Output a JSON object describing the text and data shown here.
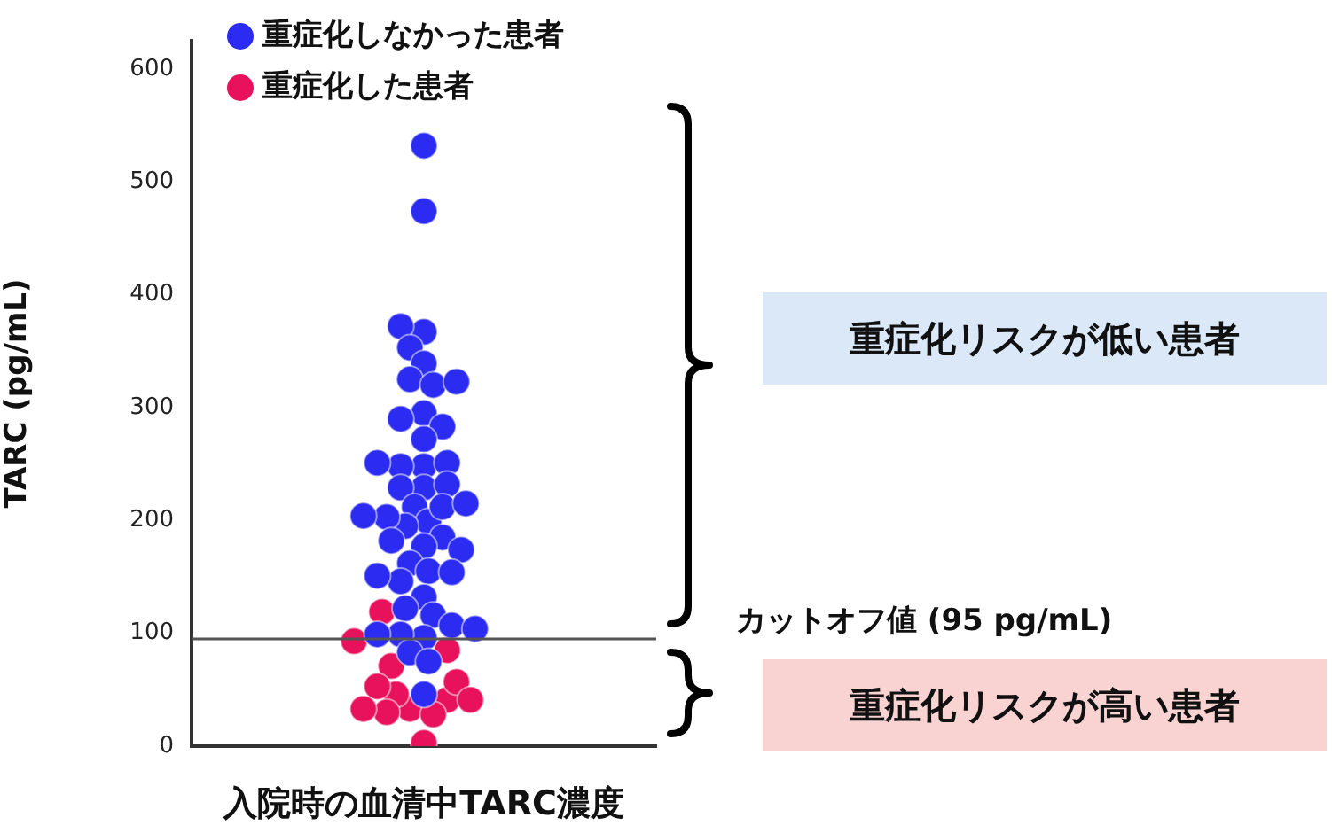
{
  "chart_data": {
    "type": "scatter",
    "categories": [
      null
    ],
    "xlabel": "入院時の血清中TARC濃度",
    "ylabel": "TARC (pg/mL)",
    "ylim": [
      0,
      625
    ],
    "yticks": [
      0,
      100,
      200,
      300,
      400,
      500,
      600
    ],
    "marker": "circle",
    "legend": "top left",
    "series": [
      {
        "name": "重症化しなかった患者",
        "color": "#2b2bf2",
        "x": [
          null,
          null,
          null,
          null,
          null,
          null,
          null,
          null,
          null,
          null,
          null,
          null,
          null,
          null,
          null,
          null,
          null,
          null,
          null,
          null,
          null,
          null,
          null,
          null,
          null,
          null,
          null,
          null,
          null,
          null,
          null,
          null,
          null,
          null,
          null,
          null,
          null,
          null,
          null,
          null,
          null,
          null,
          null,
          null,
          null,
          null,
          null
        ],
        "values": [
          532,
          474,
          367,
          372,
          353,
          339,
          325,
          320,
          323,
          295,
          290,
          283,
          272,
          248,
          248,
          251,
          251,
          229,
          229,
          232,
          212,
          199,
          195,
          212,
          203,
          215,
          204,
          185,
          177,
          182,
          174,
          162,
          155,
          154,
          146,
          151,
          132,
          122,
          116,
          107,
          96,
          99,
          99,
          104,
          83,
          75,
          46
        ]
      },
      {
        "name": "重症化した患者",
        "color": "#e8125c",
        "x": [
          null,
          null,
          null,
          null,
          null,
          null,
          null,
          null,
          null,
          null,
          null,
          null,
          null,
          null
        ],
        "values": [
          119,
          93,
          85,
          71,
          33,
          41,
          28,
          46,
          57,
          53,
          41,
          30,
          33,
          3
        ]
      }
    ],
    "ref_lines": [
      {
        "axis": "y",
        "value": 95,
        "label": "カットオフ値 (95 pg/mL)",
        "color": "#555555"
      }
    ],
    "annotations": [
      "重症化リスクが低い患者",
      "重症化リスクが高い患者"
    ]
  }
}
